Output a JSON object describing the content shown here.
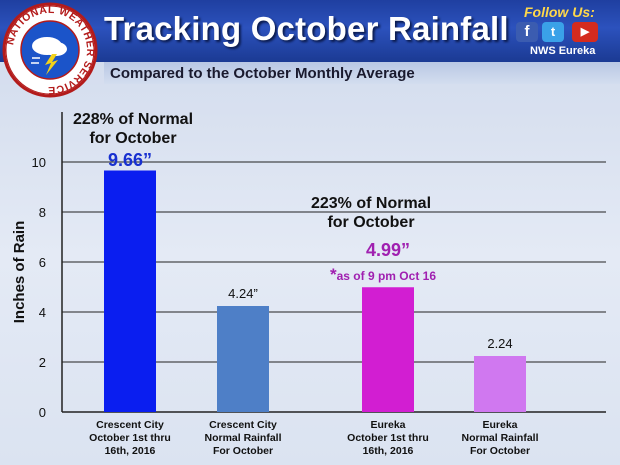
{
  "header": {
    "title": "Tracking October Rainfall",
    "subtitle": "Compared to the October Monthly Average",
    "follow_label": "Follow Us:",
    "office": "NWS Eureka",
    "logo_text": "NATIONAL WEATHER SERVICE",
    "social": [
      {
        "name": "facebook",
        "icon": "f",
        "color": "#3b5cb0"
      },
      {
        "name": "twitter",
        "icon": "t",
        "color": "#3aa1e8"
      },
      {
        "name": "youtube",
        "icon": "▶",
        "color": "#d52b1e"
      }
    ]
  },
  "annotations": {
    "cc_pct_line1": "228% of Normal",
    "cc_pct_line2": "for October",
    "eu_pct_line1": "223% of Normal",
    "eu_pct_line2": "for October",
    "eu_asof": "as of 9 pm Oct 16",
    "eu_asof_mark": "*"
  },
  "chart_data": {
    "type": "bar",
    "ylabel": "Inches of Rain",
    "ylim": [
      0,
      12
    ],
    "yticks": [
      0,
      2,
      4,
      6,
      8,
      10
    ],
    "grid": true,
    "categories": [
      [
        "Crescent City",
        "October 1st thru",
        "16th, 2016"
      ],
      [
        "Crescent City",
        "Normal Rainfall",
        "For October"
      ],
      [
        "Eureka",
        "October 1st thru",
        "16th, 2016"
      ],
      [
        "Eureka",
        "Normal Rainfall",
        "For October"
      ]
    ],
    "values": [
      9.66,
      4.24,
      4.99,
      2.24
    ],
    "value_labels": [
      "9.66”",
      "4.24”",
      "4.99”",
      "2.24"
    ],
    "colors": [
      "#0a1ef0",
      "#4e7fc7",
      "#d21ed2",
      "#d078f0"
    ],
    "label_colors": [
      "#1830d0",
      "#111111",
      "#a020b0",
      "#111111"
    ]
  }
}
